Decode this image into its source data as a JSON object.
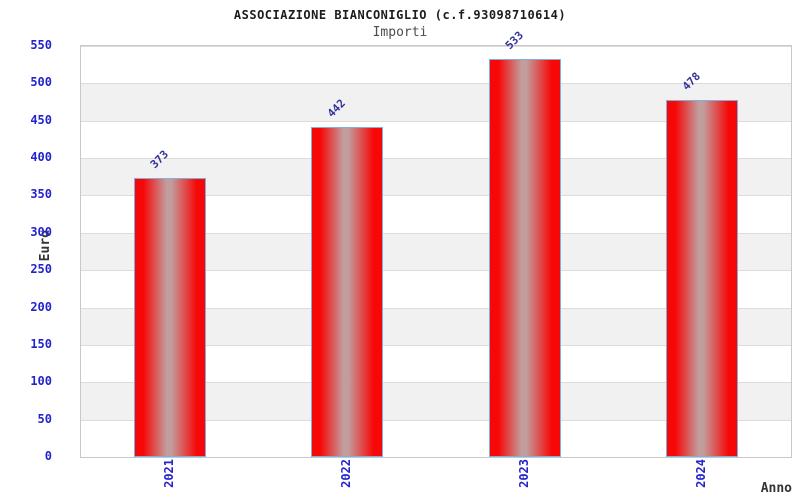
{
  "chart_data": {
    "type": "bar",
    "title": "ASSOCIAZIONE BIANCONIGLIO (c.f.93098710614)",
    "subtitle": "Importi",
    "categories": [
      "2021",
      "2022",
      "2023",
      "2024"
    ],
    "values": [
      373,
      442,
      533,
      478
    ],
    "bar_labels": [
      "373",
      "442",
      "533",
      "478"
    ],
    "xlabel": "Anno",
    "ylabel": "Euro",
    "ylim": [
      0,
      550
    ],
    "ytick_step": 50,
    "yticks": [
      0,
      50,
      100,
      150,
      200,
      250,
      300,
      350,
      400,
      450,
      500,
      550
    ],
    "grid": true,
    "legend": "none",
    "colors": {
      "bar_red": "#f70808",
      "bar_mid_silver": "#c29d9d",
      "bar_border": "#7db0dc",
      "tick_label_blue": "#2424cc",
      "value_label_navy": "#333399",
      "band_gray": "#f1f1f1",
      "gridline": "#dcdcdc",
      "frame": "#c8c8c8",
      "title_text": "#1c1c1c",
      "subtitle_text": "#4d4d4d",
      "axis_label_text": "#333333"
    }
  }
}
